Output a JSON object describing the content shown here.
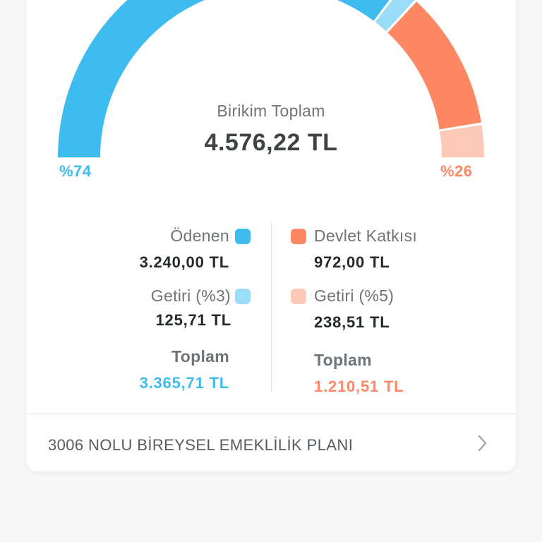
{
  "gauge": {
    "title": "Birikim Toplam",
    "total": "4.576,22 TL",
    "left_pct": "%74",
    "right_pct": "%26",
    "segments": [
      {
        "name": "odenen",
        "fraction": 0.7,
        "color": "#3fbcef"
      },
      {
        "name": "getiri3",
        "fraction": 0.03,
        "color": "#9bdcf8"
      },
      {
        "name": "devlet_katkisi",
        "fraction": 0.21,
        "color": "#fe8764"
      },
      {
        "name": "getiri5",
        "fraction": 0.05,
        "color": "#fec9b8"
      }
    ]
  },
  "left": {
    "odenen_label": "Ödenen",
    "odenen_value": "3.240,00 TL",
    "getiri_label": "Getiri (%3)",
    "getiri_value": "125,71 TL",
    "toplam_label": "Toplam",
    "toplam_value": "3.365,71 TL"
  },
  "right": {
    "devlet_label": "Devlet Katkısı",
    "devlet_value": "972,00 TL",
    "getiri_label": "Getiri (%5)",
    "getiri_value": "238,51 TL",
    "toplam_label": "Toplam",
    "toplam_value": "1.210,51 TL"
  },
  "plan": {
    "label": "3006 NOLU BİREYSEL EMEKLİLİK PLANI",
    "icon": "chevron-right-icon"
  },
  "colors": {
    "blue": "#3fbcef",
    "light_blue": "#9bdcf8",
    "orange": "#fe8764",
    "light_orange": "#fec9b8"
  }
}
